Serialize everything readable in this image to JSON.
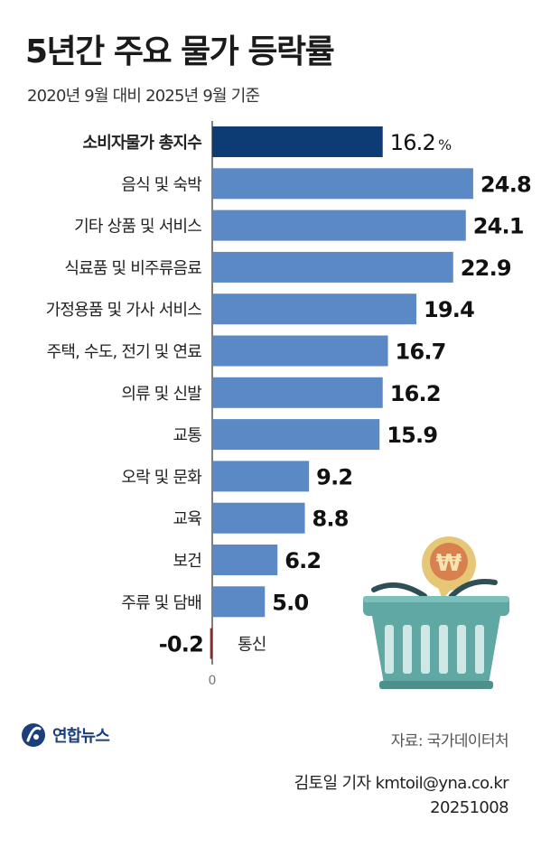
{
  "title": "5년간 주요 물가 등락률",
  "subtitle": "2020년 9월 대비 2025년 9월 기준",
  "chart_data": {
    "type": "bar",
    "orientation": "horizontal",
    "categories": [
      "소비자물가 총지수",
      "음식 및 숙박",
      "기타 상품 및 서비스",
      "식료품 및 비주류음료",
      "가정용품 및 가사 서비스",
      "주택, 수도, 전기 및 연료",
      "의류 및 신발",
      "교통",
      "오락 및 문화",
      "교육",
      "보건",
      "주류 및 담배",
      "통신"
    ],
    "values": [
      16.2,
      24.8,
      24.1,
      22.9,
      19.4,
      16.7,
      16.2,
      15.9,
      9.2,
      8.8,
      6.2,
      5.0,
      -0.2
    ],
    "value_labels": [
      "16.2",
      "24.8",
      "24.1",
      "22.9",
      "19.4",
      "16.7",
      "16.2",
      "15.9",
      "9.2",
      "8.8",
      "6.2",
      "5.0",
      "-0.2"
    ],
    "unit": "%",
    "zero_label": "0",
    "colors": {
      "highlight": "#0d3c74",
      "bar": "#5b89c6",
      "negative": "#8a2a2a",
      "axis": "#555555"
    }
  },
  "logo": {
    "text": "연합뉴스",
    "icon": "yonhap-logo-icon"
  },
  "source": "자료: 국가데이터처",
  "credit": {
    "author": "김토일 기자 kmtoil@yna.co.kr",
    "date": "20251008"
  },
  "illustration": {
    "icon": "shopping-basket-won-icon",
    "symbol": "₩"
  }
}
